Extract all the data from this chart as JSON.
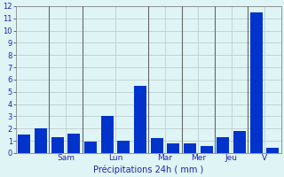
{
  "xlabel": "Précipitations 24h ( mm )",
  "ylim": [
    0,
    12
  ],
  "yticks": [
    0,
    1,
    2,
    3,
    4,
    5,
    6,
    7,
    8,
    9,
    10,
    11,
    12
  ],
  "bar_values": [
    1.5,
    2.0,
    1.3,
    1.6,
    0.9,
    3.0,
    1.0,
    5.5,
    1.2,
    0.8,
    0.8,
    0.6,
    1.3,
    1.8,
    11.5,
    0.4
  ],
  "bar_color": "#0033cc",
  "background_color": "#dff5f5",
  "grid_color": "#b8c8c8",
  "xlabel_color": "#2222aa",
  "tick_color": "#2222aa",
  "separator_positions": [
    2.5,
    4.5,
    8.5,
    10.5,
    12.5,
    14.5
  ],
  "day_labels": [
    "Sam",
    "Lun",
    "Mar",
    "Mer",
    "Jeu",
    "V"
  ],
  "figsize": [
    3.2,
    2.0
  ],
  "dpi": 100
}
